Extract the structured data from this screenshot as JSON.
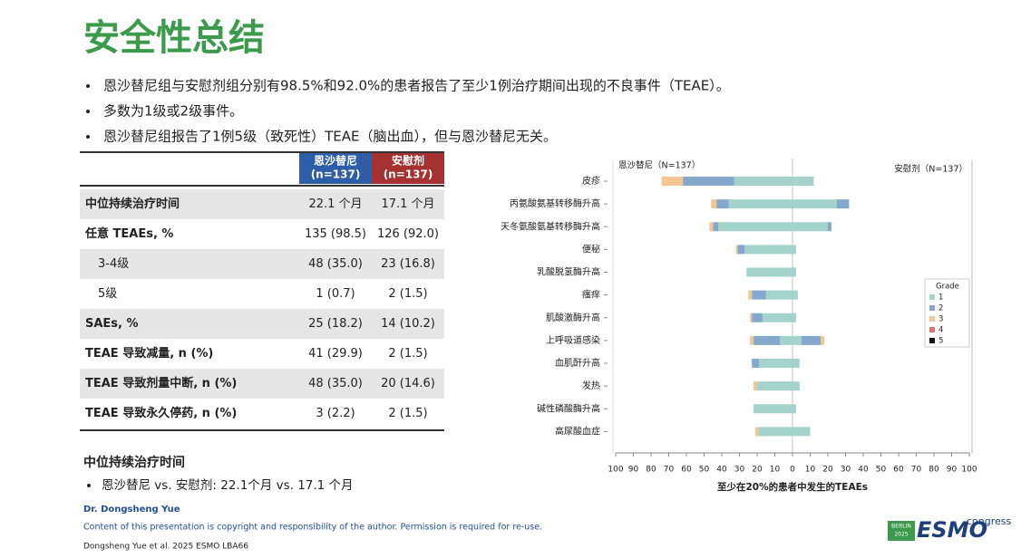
{
  "title": "安全性总结",
  "bullets": [
    "恩沙替尼组与安慰剂组分别有98.5%和92.0%的患者报告了至少1例治疗期间出现的不良事件（TEAE）。",
    "多数为1级或2级事件。",
    "恩沙替尼组报告了1例5级（致死性）TEAE（脑出血），但与恩沙替尼无关。"
  ],
  "table": {
    "header": [
      [
        "恩沙替尼",
        "(n=137)"
      ],
      [
        "安慰剂",
        "(n=137)"
      ]
    ],
    "rows": [
      [
        "中位持续治疗时间",
        "22.1 个月",
        "17.1 个月"
      ],
      [
        "任意 TEAEs, %",
        "135 (98.5)",
        "126 (92.0)"
      ],
      [
        "3-4级",
        "48 (35.0)",
        "23 (16.8)"
      ],
      [
        "5级",
        "1 (0.7)",
        "2 (1.5)"
      ],
      [
        "SAEs, %",
        "25 (18.2)",
        "14 (10.2)"
      ],
      [
        "TEAE 导致减量, n (%)",
        "41 (29.9)",
        "2 (1.5)"
      ],
      [
        "TEAE 导致剂量中断, n (%)",
        "48 (35.0)",
        "20 (14.6)"
      ],
      [
        "TEAE 导致永久停药, n (%)",
        "3 (2.2)",
        "2 (1.5)"
      ]
    ]
  },
  "summary": {
    "heading": "中位持续治疗时间",
    "bullet": "恩沙替尼 vs. 安慰剂: 22.1个月 vs. 17.1 个月"
  },
  "footer": {
    "author": "Dr. Dongsheng Yue",
    "copyright": "Content of this presentation is copyright and responsibility of the author. Permission is required for re-use.",
    "citation": "Dongsheng Yue  et al. 2025 ESMO LBA66"
  },
  "logo": {
    "city": "BERLIN",
    "year": "2025",
    "name": "ESMO",
    "word": "congress"
  },
  "chart_data": {
    "type": "butterfly-bar",
    "left_label": "恩沙替尼（N=137）",
    "right_label": "安慰剂（N=137）",
    "x_label": "至少在20%的患者中发生的TEAEs",
    "legend_title": "Grade",
    "legend": "right",
    "categories": [
      "皮疹",
      "丙氨酸氨基转移酶升高",
      "天冬氨酸氨基转移酶升高",
      "便秘",
      "乳酸脱氢酶升高",
      "瘙痒",
      "肌酸激酶升高",
      "上呼吸道感染",
      "血肌酐升高",
      "发热",
      "碱性磷酸酶升高",
      "高尿酸血症"
    ],
    "series": [
      {
        "name": "1",
        "color": "#a3d3cb",
        "values": [
          -33,
          -36,
          -42,
          -27,
          -26,
          -15,
          -17,
          -7,
          -19,
          -20,
          -22,
          -19
        ],
        "values_right": [
          12,
          25,
          20,
          2,
          2,
          3,
          2,
          5,
          4,
          4,
          2,
          10
        ]
      },
      {
        "name": "2",
        "color": "#86a8cf",
        "values": [
          -29,
          -7,
          -3,
          -4,
          0,
          -8,
          -6,
          -15,
          -4,
          0,
          0,
          0
        ],
        "values_right": [
          0,
          7,
          2,
          0,
          0,
          0,
          0,
          11,
          0,
          0,
          0,
          0
        ]
      },
      {
        "name": "3",
        "color": "#f4c590",
        "values": [
          -12,
          -3,
          -2,
          -1,
          0,
          -2,
          -1,
          -2,
          0,
          -2,
          0,
          -2
        ],
        "values_right": [
          0,
          0,
          0,
          0,
          0,
          0,
          0,
          2,
          0,
          0,
          0,
          0
        ]
      },
      {
        "name": "4",
        "color": "#e07272",
        "values": [
          0,
          0,
          0,
          0,
          0,
          0,
          0,
          0,
          0,
          0,
          0,
          0
        ],
        "values_right": [
          0,
          0,
          0,
          0,
          0,
          0,
          0,
          0,
          0,
          0,
          0,
          0
        ]
      },
      {
        "name": "5",
        "color": "#111111",
        "values": [
          0,
          0,
          0,
          0,
          0,
          0,
          0,
          0,
          0,
          0,
          0,
          0
        ],
        "values_right": [
          0,
          0,
          0,
          0,
          0,
          0,
          0,
          0,
          0,
          0,
          0,
          0
        ]
      }
    ],
    "xlim": [
      -100,
      100
    ],
    "xticks": [
      {
        "value": -100,
        "label": "100"
      },
      {
        "value": -90,
        "label": "90"
      },
      {
        "value": -80,
        "label": "80"
      },
      {
        "value": -70,
        "label": "70"
      },
      {
        "value": -60,
        "label": "60"
      },
      {
        "value": -50,
        "label": "50"
      },
      {
        "value": -40,
        "label": "40"
      },
      {
        "value": -30,
        "label": "30"
      },
      {
        "value": -20,
        "label": "20"
      },
      {
        "value": -10,
        "label": "10"
      },
      0,
      10,
      20,
      30,
      40,
      50,
      60,
      70,
      80,
      90,
      100
    ]
  }
}
